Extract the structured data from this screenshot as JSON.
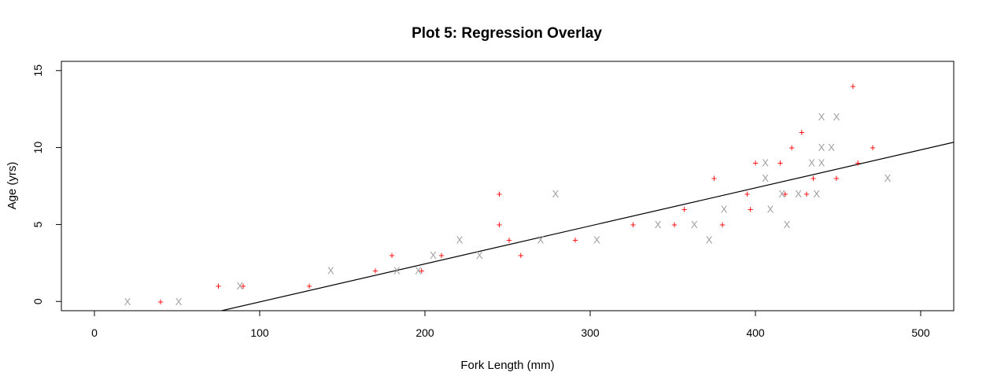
{
  "chart_data": {
    "type": "scatter",
    "title": "Plot 5: Regression Overlay",
    "xlabel": "Fork Length (mm)",
    "ylabel": "Age (yrs)",
    "xlim": [
      -20,
      520
    ],
    "ylim": [
      -0.6,
      15.6
    ],
    "x_ticks": [
      0,
      100,
      200,
      300,
      400,
      500
    ],
    "y_ticks": [
      0,
      5,
      10,
      15
    ],
    "grid": false,
    "legend": "none",
    "series": [
      {
        "symbol": "+",
        "color": "#ff0000",
        "points": [
          [
            40,
            0
          ],
          [
            75,
            1
          ],
          [
            90,
            1
          ],
          [
            130,
            1
          ],
          [
            170,
            2
          ],
          [
            180,
            3
          ],
          [
            198,
            2
          ],
          [
            210,
            3
          ],
          [
            245,
            7
          ],
          [
            245,
            5
          ],
          [
            251,
            4
          ],
          [
            258,
            3
          ],
          [
            291,
            4
          ],
          [
            326,
            5
          ],
          [
            351,
            5
          ],
          [
            357,
            6
          ],
          [
            375,
            8
          ],
          [
            380,
            5
          ],
          [
            395,
            7
          ],
          [
            397,
            6
          ],
          [
            400,
            9
          ],
          [
            415,
            9
          ],
          [
            418,
            7
          ],
          [
            422,
            10
          ],
          [
            428,
            11
          ],
          [
            431,
            7
          ],
          [
            435,
            8
          ],
          [
            449,
            8
          ],
          [
            459,
            14
          ],
          [
            462,
            9
          ],
          [
            471,
            10
          ]
        ]
      },
      {
        "symbol": "X",
        "color": "#a0a0a0",
        "points": [
          [
            20,
            0
          ],
          [
            51,
            0
          ],
          [
            88,
            1
          ],
          [
            143,
            2
          ],
          [
            183,
            2
          ],
          [
            196,
            2
          ],
          [
            205,
            3
          ],
          [
            221,
            4
          ],
          [
            233,
            3
          ],
          [
            270,
            4
          ],
          [
            279,
            7
          ],
          [
            304,
            4
          ],
          [
            341,
            5
          ],
          [
            363,
            5
          ],
          [
            372,
            4
          ],
          [
            381,
            6
          ],
          [
            406,
            9
          ],
          [
            406,
            8
          ],
          [
            409,
            6
          ],
          [
            416,
            7
          ],
          [
            419,
            5
          ],
          [
            426,
            7
          ],
          [
            434,
            9
          ],
          [
            437,
            7
          ],
          [
            440,
            12
          ],
          [
            440,
            10
          ],
          [
            440,
            9
          ],
          [
            446,
            10
          ],
          [
            449,
            12
          ],
          [
            480,
            8
          ]
        ]
      }
    ],
    "regression_line": {
      "intercept": -2.5,
      "slope": 0.0247,
      "color": "#000000"
    }
  }
}
